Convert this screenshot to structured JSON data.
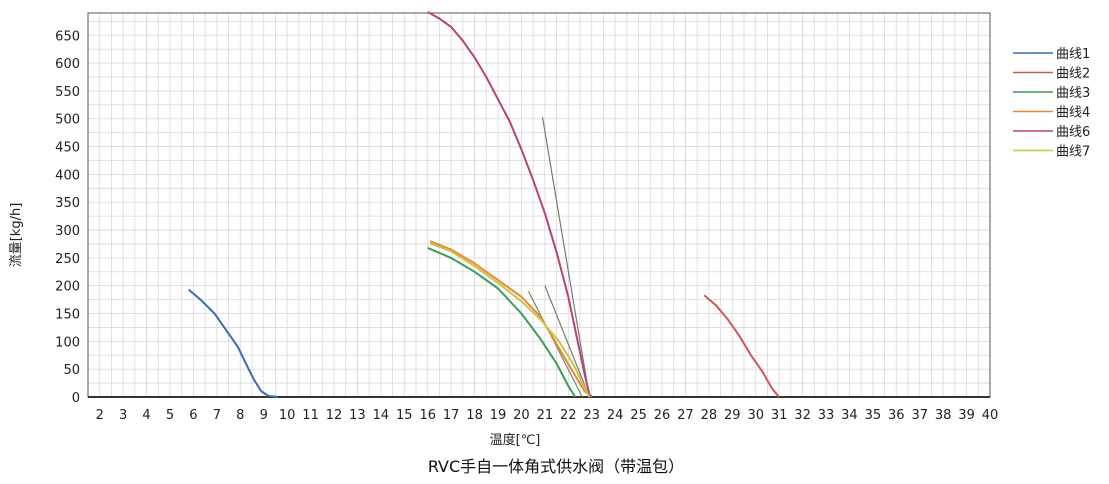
{
  "chart_data": {
    "type": "line",
    "title": "RVC手自一体角式供水阀（带温包）",
    "xlabel": "温度[℃]",
    "ylabel": "流量[kg/h]",
    "xlim": [
      1.5,
      40
    ],
    "ylim": [
      0,
      690
    ],
    "x_ticks": [
      2,
      3,
      4,
      5,
      6,
      7,
      8,
      9,
      10,
      11,
      12,
      13,
      14,
      15,
      16,
      17,
      18,
      19,
      20,
      21,
      22,
      23,
      24,
      25,
      26,
      27,
      28,
      29,
      30,
      31,
      32,
      33,
      34,
      35,
      36,
      37,
      38,
      39,
      40
    ],
    "y_ticks": [
      0,
      50,
      100,
      150,
      200,
      250,
      300,
      350,
      400,
      450,
      500,
      550,
      600,
      650
    ],
    "grid": true,
    "legend_position": "right",
    "series": [
      {
        "name": "曲线1",
        "color": "#3c6bb0",
        "points": [
          [
            5.8,
            193
          ],
          [
            6.3,
            175
          ],
          [
            6.9,
            150
          ],
          [
            7.4,
            120
          ],
          [
            7.9,
            90
          ],
          [
            8.3,
            55
          ],
          [
            8.6,
            30
          ],
          [
            8.9,
            10
          ],
          [
            9.2,
            2
          ],
          [
            9.6,
            0
          ]
        ]
      },
      {
        "name": "曲线2",
        "color": "#c85a5a",
        "points": [
          [
            27.8,
            183
          ],
          [
            28.3,
            165
          ],
          [
            28.8,
            140
          ],
          [
            29.3,
            110
          ],
          [
            29.8,
            75
          ],
          [
            30.3,
            45
          ],
          [
            30.7,
            15
          ],
          [
            31.0,
            0
          ]
        ]
      },
      {
        "name": "曲线3",
        "color": "#3f9a5c",
        "points": [
          [
            16.0,
            268
          ],
          [
            17.0,
            250
          ],
          [
            18.0,
            225
          ],
          [
            19.0,
            195
          ],
          [
            20.0,
            150
          ],
          [
            20.8,
            105
          ],
          [
            21.5,
            60
          ],
          [
            22.0,
            20
          ],
          [
            22.3,
            0
          ]
        ]
      },
      {
        "name": "曲线4",
        "color": "#e58a3a",
        "points": [
          [
            16.1,
            280
          ],
          [
            17.0,
            265
          ],
          [
            18.0,
            240
          ],
          [
            19.0,
            210
          ],
          [
            20.0,
            180
          ],
          [
            20.8,
            145
          ],
          [
            21.5,
            95
          ],
          [
            22.2,
            45
          ],
          [
            22.7,
            10
          ],
          [
            23.0,
            0
          ]
        ]
      },
      {
        "name": "曲线6",
        "color": "#b5427a",
        "points": [
          [
            16.0,
            692
          ],
          [
            16.5,
            680
          ],
          [
            17.0,
            665
          ],
          [
            17.5,
            640
          ],
          [
            18.0,
            610
          ],
          [
            18.5,
            575
          ],
          [
            19.0,
            535
          ],
          [
            19.5,
            495
          ],
          [
            20.0,
            445
          ],
          [
            20.5,
            390
          ],
          [
            21.0,
            330
          ],
          [
            21.5,
            260
          ],
          [
            22.0,
            180
          ],
          [
            22.4,
            100
          ],
          [
            22.7,
            40
          ],
          [
            22.9,
            5
          ],
          [
            23.0,
            0
          ]
        ]
      },
      {
        "name": "曲线7",
        "color": "#c9c445",
        "points": [
          [
            16.1,
            276
          ],
          [
            17.0,
            262
          ],
          [
            18.0,
            235
          ],
          [
            19.0,
            205
          ],
          [
            20.0,
            172
          ],
          [
            20.8,
            140
          ],
          [
            21.6,
            100
          ],
          [
            22.2,
            60
          ],
          [
            22.6,
            25
          ],
          [
            22.9,
            0
          ]
        ]
      }
    ],
    "extra_lines": [
      {
        "color": "#777777",
        "points": [
          [
            20.9,
            503
          ],
          [
            22.9,
            0
          ]
        ]
      },
      {
        "color": "#777777",
        "points": [
          [
            21.0,
            200
          ],
          [
            22.9,
            0
          ]
        ]
      },
      {
        "color": "#6b8f6b",
        "points": [
          [
            20.3,
            190
          ],
          [
            22.6,
            0
          ]
        ]
      }
    ]
  }
}
